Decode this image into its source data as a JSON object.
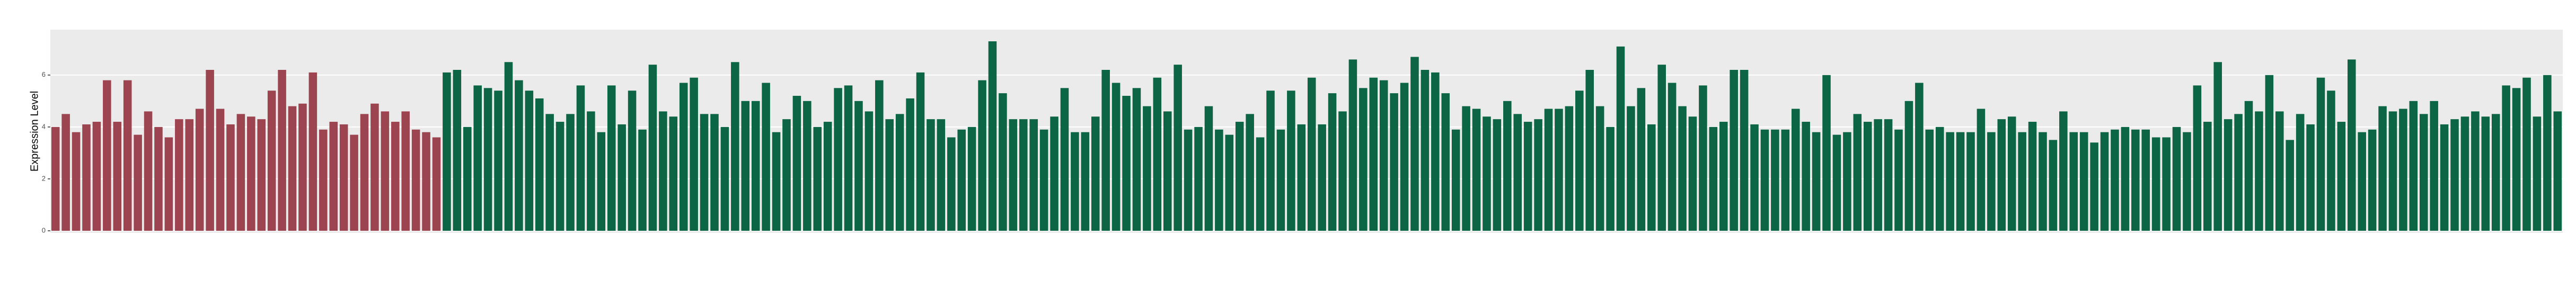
{
  "chart_data": {
    "type": "bar",
    "y_label": "Expression Level",
    "ylim": [
      0,
      7.75
    ],
    "yticks": [
      0,
      2,
      4,
      6
    ],
    "grid": true,
    "groups": [
      {
        "color": "#9c4450",
        "values": [
          4.0,
          4.5,
          3.8,
          4.1,
          4.2,
          5.8,
          4.2,
          5.8,
          3.7,
          4.6,
          4.0,
          3.6,
          4.3,
          4.3,
          4.7,
          6.2,
          4.7,
          4.1,
          4.5,
          4.4,
          4.3,
          5.4,
          6.2,
          4.8,
          4.9,
          6.1,
          3.9,
          4.2,
          4.1,
          3.7,
          4.5,
          4.9,
          4.6,
          4.2,
          4.6,
          3.9,
          3.8,
          3.6
        ]
      },
      {
        "color": "#0c6544",
        "values": [
          6.1,
          6.2,
          4.0,
          5.6,
          5.5,
          5.4,
          6.5,
          5.8,
          5.4,
          5.1,
          4.5,
          4.2,
          4.5,
          5.6,
          4.6,
          3.8,
          5.6,
          4.1,
          5.4,
          3.9,
          6.4,
          4.6,
          4.4,
          5.7,
          5.9,
          4.5,
          4.5,
          4.0,
          6.5,
          5.0,
          5.0,
          5.7,
          3.8,
          4.3,
          5.2,
          5.0,
          4.0,
          4.2,
          5.5,
          5.6,
          5.0,
          4.6,
          5.8,
          4.3,
          4.5,
          5.1,
          6.1,
          4.3,
          4.3,
          3.6,
          3.9,
          4.0,
          5.8,
          7.3,
          5.3,
          4.3,
          4.3,
          4.3,
          3.9,
          4.4,
          5.5,
          3.8,
          3.8,
          4.4,
          6.2,
          5.7,
          5.2,
          5.5,
          4.8,
          5.9,
          4.6,
          6.4,
          3.9,
          4.0,
          4.8,
          3.9,
          3.7,
          4.2,
          4.5,
          3.6,
          5.4,
          3.9,
          5.4,
          4.1,
          5.9,
          4.1,
          5.3,
          4.6,
          6.6,
          5.5,
          5.9,
          5.8,
          5.3,
          5.7,
          6.7,
          6.2,
          6.1,
          5.3,
          3.9,
          4.8,
          4.7,
          4.4,
          4.3,
          5.0,
          4.5,
          4.2,
          4.3,
          4.7,
          4.7,
          4.8,
          5.4,
          6.2,
          4.8,
          4.0,
          7.1,
          4.8,
          5.5,
          4.1,
          6.4,
          5.7,
          4.8,
          4.4,
          5.6,
          4.0,
          4.2,
          6.2,
          6.2,
          4.1,
          3.9,
          3.9,
          3.9,
          4.7,
          4.2,
          3.8,
          6.0,
          3.7,
          3.8,
          4.5,
          4.2,
          4.3,
          4.3,
          3.9,
          5.0,
          5.7,
          3.9,
          4.0,
          3.8,
          3.8,
          3.8,
          4.7,
          3.8,
          4.3,
          4.4,
          3.8,
          4.2,
          3.8,
          3.5,
          4.6,
          3.8,
          3.8,
          3.4,
          3.8,
          3.9,
          4.0,
          3.9,
          3.9,
          3.6,
          3.6,
          4.0,
          3.8,
          5.6,
          4.2,
          6.5,
          4.3,
          4.5,
          5.0,
          4.6,
          6.0,
          4.6,
          3.5,
          4.5,
          4.1,
          5.9,
          5.4,
          4.2,
          6.6,
          3.8,
          3.9,
          4.8,
          4.6,
          4.7,
          5.0,
          4.5,
          5.0,
          4.1,
          4.3,
          4.4,
          4.6,
          4.4,
          4.5,
          5.6,
          5.5,
          5.9,
          4.4,
          6.0,
          4.6
        ]
      }
    ]
  }
}
